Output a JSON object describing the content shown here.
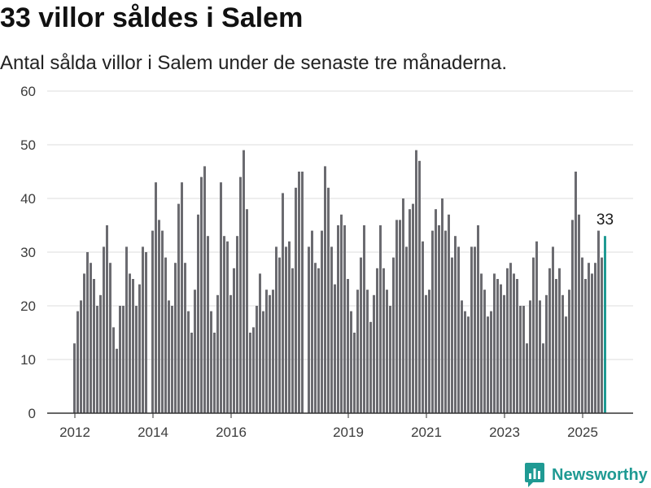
{
  "chart_data": {
    "type": "bar",
    "title": "33 villor såldes i Salem",
    "subtitle": "Antal sålda villor i Salem under de senaste tre månaderna.",
    "ylim": [
      0,
      60
    ],
    "yticks": [
      0,
      10,
      20,
      30,
      40,
      50,
      60
    ],
    "xticks": [
      "2012",
      "2014",
      "2016",
      "2019",
      "2021",
      "2023",
      "2025"
    ],
    "grid": true,
    "colors": {
      "bars": "#6b6b70",
      "highlight": "#1f9a93"
    },
    "highlight": {
      "x": "2025-08",
      "label": "33"
    },
    "x": [
      "2012-01",
      "2012-02",
      "2012-03",
      "2012-04",
      "2012-05",
      "2012-06",
      "2012-07",
      "2012-08",
      "2012-09",
      "2012-10",
      "2012-11",
      "2012-12",
      "2013-01",
      "2013-02",
      "2013-03",
      "2013-04",
      "2013-05",
      "2013-06",
      "2013-07",
      "2013-08",
      "2013-09",
      "2013-10",
      "2013-11",
      "2013-12",
      "2014-01",
      "2014-02",
      "2014-03",
      "2014-04",
      "2014-05",
      "2014-06",
      "2014-07",
      "2014-08",
      "2014-09",
      "2014-10",
      "2014-11",
      "2014-12",
      "2015-01",
      "2015-02",
      "2015-03",
      "2015-04",
      "2015-05",
      "2015-06",
      "2015-07",
      "2015-08",
      "2015-09",
      "2015-10",
      "2015-11",
      "2015-12",
      "2016-01",
      "2016-02",
      "2016-03",
      "2016-04",
      "2016-05",
      "2016-06",
      "2016-07",
      "2016-08",
      "2016-09",
      "2016-10",
      "2016-11",
      "2016-12",
      "2017-01",
      "2017-02",
      "2017-03",
      "2017-04",
      "2017-05",
      "2017-06",
      "2017-07",
      "2017-08",
      "2017-09",
      "2017-10",
      "2017-11",
      "2017-12",
      "2018-01",
      "2018-02",
      "2018-03",
      "2018-04",
      "2018-05",
      "2018-06",
      "2018-07",
      "2018-08",
      "2018-09",
      "2018-10",
      "2018-11",
      "2018-12",
      "2019-01",
      "2019-02",
      "2019-03",
      "2019-04",
      "2019-05",
      "2019-06",
      "2019-07",
      "2019-08",
      "2019-09",
      "2019-10",
      "2019-11",
      "2019-12",
      "2020-01",
      "2020-02",
      "2020-03",
      "2020-04",
      "2020-05",
      "2020-06",
      "2020-07",
      "2020-08",
      "2020-09",
      "2020-10",
      "2020-11",
      "2020-12",
      "2021-01",
      "2021-02",
      "2021-03",
      "2021-04",
      "2021-05",
      "2021-06",
      "2021-07",
      "2021-08",
      "2021-09",
      "2021-10",
      "2021-11",
      "2021-12",
      "2022-01",
      "2022-02",
      "2022-03",
      "2022-04",
      "2022-05",
      "2022-06",
      "2022-07",
      "2022-08",
      "2022-09",
      "2022-10",
      "2022-11",
      "2022-12",
      "2023-01",
      "2023-02",
      "2023-03",
      "2023-04",
      "2023-05",
      "2023-06",
      "2023-07",
      "2023-08",
      "2023-09",
      "2023-10",
      "2023-11",
      "2023-12",
      "2024-01",
      "2024-02",
      "2024-03",
      "2024-04",
      "2024-05",
      "2024-06",
      "2024-07",
      "2024-08",
      "2024-09",
      "2024-10",
      "2024-11",
      "2024-12",
      "2025-01",
      "2025-02",
      "2025-03",
      "2025-04",
      "2025-05",
      "2025-06",
      "2025-07",
      "2025-08"
    ],
    "values": [
      13,
      19,
      21,
      26,
      30,
      28,
      25,
      20,
      22,
      31,
      35,
      28,
      16,
      12,
      20,
      20,
      31,
      26,
      25,
      20,
      24,
      31,
      30,
      null,
      34,
      43,
      36,
      34,
      29,
      21,
      20,
      28,
      39,
      43,
      28,
      19,
      15,
      23,
      37,
      44,
      46,
      33,
      19,
      15,
      22,
      43,
      33,
      32,
      22,
      27,
      33,
      44,
      49,
      38,
      15,
      16,
      20,
      26,
      19,
      23,
      22,
      23,
      31,
      29,
      41,
      31,
      32,
      27,
      42,
      45,
      45,
      null,
      31,
      34,
      28,
      27,
      34,
      46,
      42,
      31,
      24,
      35,
      37,
      35,
      25,
      19,
      15,
      23,
      29,
      35,
      23,
      17,
      22,
      27,
      35,
      27,
      23,
      20,
      29,
      36,
      36,
      40,
      31,
      38,
      39,
      49,
      47,
      32,
      22,
      23,
      34,
      38,
      35,
      40,
      34,
      37,
      29,
      33,
      31,
      21,
      19,
      18,
      31,
      31,
      35,
      26,
      23,
      18,
      19,
      26,
      25,
      24,
      22,
      27,
      28,
      26,
      25,
      20,
      20,
      13,
      21,
      29,
      32,
      21,
      13,
      22,
      27,
      31,
      25,
      27,
      22,
      18,
      23,
      36,
      45,
      37,
      29,
      25,
      28,
      26,
      28,
      34,
      29,
      33
    ]
  },
  "brand": {
    "name": "Newsworthy",
    "icon": "newsworthy-logo-icon",
    "color": "#1f9a93"
  }
}
